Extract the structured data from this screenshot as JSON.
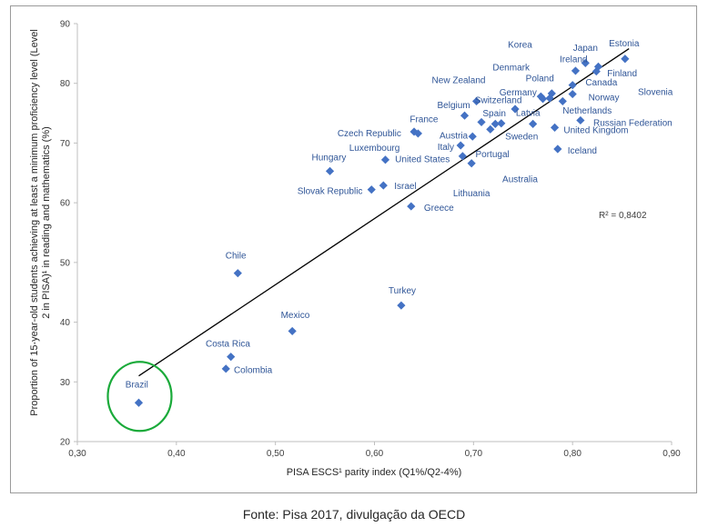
{
  "caption": "Fonte: Pisa 2017, divulgação da OECD",
  "chart_data": {
    "type": "scatter",
    "xlabel": "PISA ESCS¹ parity index (Q1%/Q2-4%)",
    "ylabel_lines": [
      "Proportion of 15-year-old students achieving at least a minimum proficiency level (Level",
      "2 in PISA)¹ in reading and mathematics (%)"
    ],
    "xlim": [
      0.3,
      0.9
    ],
    "ylim": [
      20,
      90
    ],
    "x_ticks": [
      "0,30",
      "0,40",
      "0,50",
      "0,60",
      "0,70",
      "0,80",
      "0,90"
    ],
    "y_ticks": [
      "20",
      "30",
      "40",
      "50",
      "60",
      "70",
      "80",
      "90"
    ],
    "r_squared_label": "R² = 0,8402",
    "marker_color": "#4472c4",
    "label_color": "#2f5597",
    "highlight_color": "#1aaa3a",
    "highlight": "Brazil",
    "trendline": {
      "x": [
        0.362,
        0.857
      ],
      "y": [
        31.0,
        85.8
      ]
    },
    "points": [
      {
        "name": "Brazil",
        "x": 0.362,
        "y": 26.5,
        "lx": 0.36,
        "ly": 29.6,
        "anchor": "middle"
      },
      {
        "name": "Colombia",
        "x": 0.45,
        "y": 32.2,
        "lx": 0.458,
        "ly": 32.0,
        "anchor": "start"
      },
      {
        "name": "Costa Rica",
        "x": 0.455,
        "y": 34.2,
        "lx": 0.452,
        "ly": 36.4,
        "anchor": "middle"
      },
      {
        "name": "Mexico",
        "x": 0.517,
        "y": 38.5,
        "lx": 0.52,
        "ly": 41.2,
        "anchor": "middle"
      },
      {
        "name": "Chile",
        "x": 0.462,
        "y": 48.2,
        "lx": 0.46,
        "ly": 51.2,
        "anchor": "middle"
      },
      {
        "name": "Turkey",
        "x": 0.627,
        "y": 42.8,
        "lx": 0.628,
        "ly": 45.3,
        "anchor": "middle"
      },
      {
        "name": "Greece",
        "x": 0.637,
        "y": 59.4,
        "lx": 0.65,
        "ly": 59.2,
        "anchor": "start"
      },
      {
        "name": "Slovak Republic",
        "x": 0.597,
        "y": 62.2,
        "lx": 0.588,
        "ly": 62.0,
        "anchor": "end"
      },
      {
        "name": "Israel",
        "x": 0.609,
        "y": 62.9,
        "lx": 0.62,
        "ly": 62.8,
        "anchor": "start"
      },
      {
        "name": "Hungary",
        "x": 0.555,
        "y": 65.3,
        "lx": 0.554,
        "ly": 67.6,
        "anchor": "middle"
      },
      {
        "name": "Luxembourg",
        "x": 0.611,
        "y": 67.2,
        "lx": 0.6,
        "ly": 69.2,
        "anchor": "middle"
      },
      {
        "name": "Czech Republic",
        "x": 0.64,
        "y": 71.9,
        "lx": 0.627,
        "ly": 71.7,
        "anchor": "end"
      },
      {
        "name": "France",
        "x": 0.644,
        "y": 71.6,
        "lx": 0.65,
        "ly": 74.0,
        "anchor": "middle"
      },
      {
        "name": "United States",
        "x": 0.689,
        "y": 67.8,
        "lx": 0.676,
        "ly": 67.3,
        "anchor": "end"
      },
      {
        "name": "Italy",
        "x": 0.687,
        "y": 69.6,
        "lx": 0.672,
        "ly": 69.4,
        "anchor": "middle"
      },
      {
        "name": "Austria",
        "x": 0.699,
        "y": 71.1,
        "lx": 0.68,
        "ly": 71.3,
        "anchor": "middle"
      },
      {
        "name": "Belgium",
        "x": 0.691,
        "y": 74.6,
        "lx": 0.68,
        "ly": 76.4,
        "anchor": "middle"
      },
      {
        "name": "New Zealand",
        "x": 0.703,
        "y": 77.0,
        "lx": 0.685,
        "ly": 80.6,
        "anchor": "middle"
      },
      {
        "name": "Lithuania",
        "x": 0.698,
        "y": 66.6,
        "lx": 0.698,
        "ly": 61.6,
        "anchor": "middle"
      },
      {
        "name": "Portugal",
        "x": 0.708,
        "y": 73.5,
        "lx": 0.702,
        "ly": 68.2,
        "anchor": "start"
      },
      {
        "name": "Spain",
        "x": 0.722,
        "y": 73.2,
        "lx": 0.721,
        "ly": 75.0,
        "anchor": "middle"
      },
      {
        "name": "Switzerland",
        "x": 0.717,
        "y": 72.3,
        "lx": 0.725,
        "ly": 77.2,
        "anchor": "middle"
      },
      {
        "name": "Sweden",
        "x": 0.728,
        "y": 73.3,
        "lx": 0.732,
        "ly": 71.1,
        "anchor": "start"
      },
      {
        "name": "Australia",
        "x": 0.742,
        "y": 75.7,
        "lx": 0.747,
        "ly": 64.0,
        "anchor": "middle"
      },
      {
        "name": "Latvia",
        "x": 0.76,
        "y": 73.2,
        "lx": 0.755,
        "ly": 75.1,
        "anchor": "middle"
      },
      {
        "name": "Germany",
        "x": 0.768,
        "y": 77.8,
        "lx": 0.745,
        "ly": 78.5,
        "anchor": "middle"
      },
      {
        "name": "Poland",
        "x": 0.77,
        "y": 77.4,
        "lx": 0.767,
        "ly": 80.9,
        "anchor": "middle"
      },
      {
        "name": "Denmark",
        "x": 0.777,
        "y": 77.5,
        "lx": 0.738,
        "ly": 82.7,
        "anchor": "middle"
      },
      {
        "name": "Korea",
        "x": 0.779,
        "y": 78.3,
        "lx": 0.747,
        "ly": 86.5,
        "anchor": "middle"
      },
      {
        "name": "United Kingdom",
        "x": 0.782,
        "y": 72.6,
        "lx": 0.791,
        "ly": 72.2,
        "anchor": "start"
      },
      {
        "name": "Iceland",
        "x": 0.785,
        "y": 69.0,
        "lx": 0.795,
        "ly": 68.8,
        "anchor": "start"
      },
      {
        "name": "Netherlands",
        "x": 0.79,
        "y": 77.0,
        "lx": 0.79,
        "ly": 75.5,
        "anchor": "start"
      },
      {
        "name": "Canada",
        "x": 0.8,
        "y": 79.7,
        "lx": 0.813,
        "ly": 80.2,
        "anchor": "start"
      },
      {
        "name": "Norway",
        "x": 0.8,
        "y": 78.2,
        "lx": 0.816,
        "ly": 77.7,
        "anchor": "start"
      },
      {
        "name": "Ireland",
        "x": 0.803,
        "y": 82.1,
        "lx": 0.787,
        "ly": 84.1,
        "anchor": "start"
      },
      {
        "name": "Russian Federation",
        "x": 0.808,
        "y": 73.8,
        "lx": 0.821,
        "ly": 73.4,
        "anchor": "start"
      },
      {
        "name": "Japan",
        "x": 0.813,
        "y": 83.4,
        "lx": 0.813,
        "ly": 86.0,
        "anchor": "middle"
      },
      {
        "name": "Finland",
        "x": 0.824,
        "y": 82.0,
        "lx": 0.835,
        "ly": 81.7,
        "anchor": "start"
      },
      {
        "name": "Slovenia",
        "x": 0.826,
        "y": 82.8,
        "lx": 0.866,
        "ly": 78.6,
        "anchor": "start"
      },
      {
        "name": "Estonia",
        "x": 0.853,
        "y": 84.1,
        "lx": 0.852,
        "ly": 86.7,
        "anchor": "middle"
      }
    ]
  }
}
